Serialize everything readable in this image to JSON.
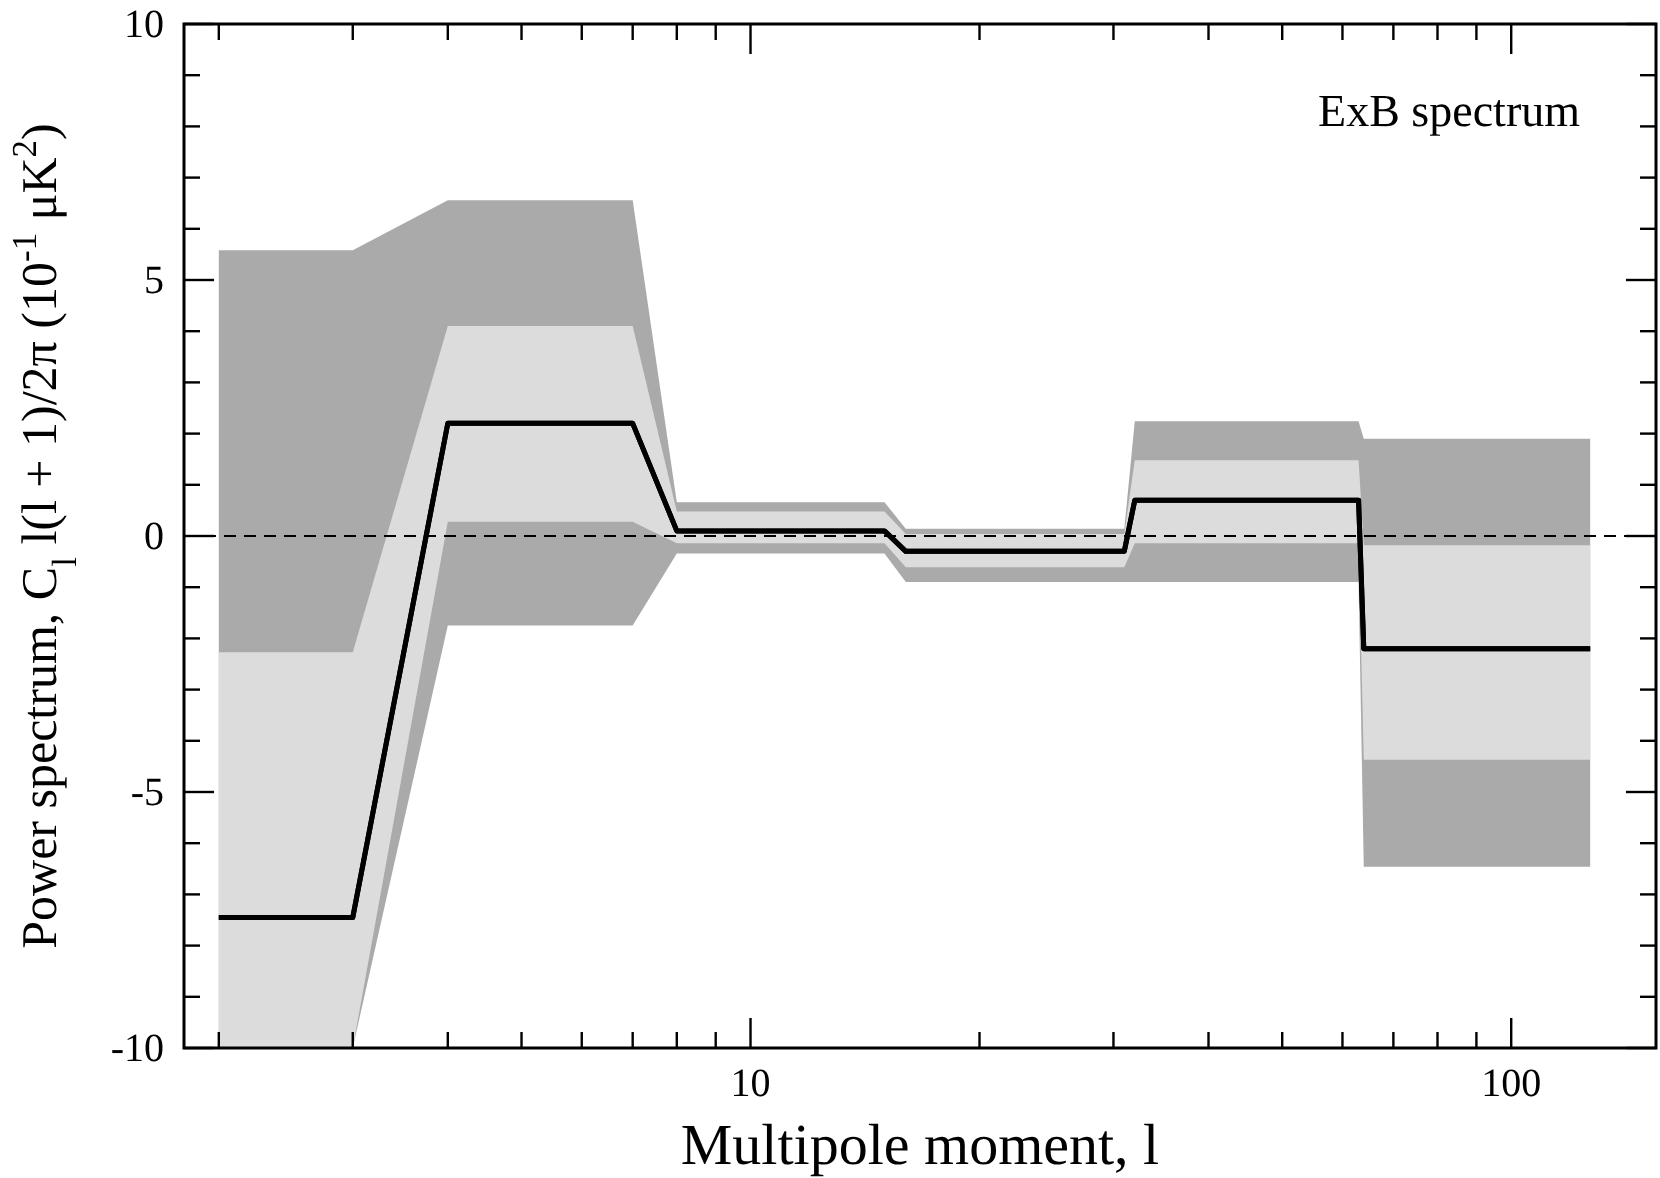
{
  "chart_data": {
    "type": "line",
    "xlabel": "Multipole moment, l",
    "ylabel": "Power spectrum, C$_{l}$ l(l + 1)/2π (10$^{-1}$ μK$^{2}$)",
    "annotations": [
      "ExB spectrum"
    ],
    "x": [
      2,
      3,
      4,
      7,
      8,
      15,
      16,
      31,
      32,
      63,
      64,
      127
    ],
    "log": "x",
    "xlim": [
      1.8,
      155
    ],
    "ylim": [
      -10,
      10
    ],
    "xticks": [
      {
        "value": 2,
        "label": null
      },
      {
        "value": 3,
        "label": null
      },
      {
        "value": 4,
        "label": null
      },
      {
        "value": 5,
        "label": null
      },
      {
        "value": 6,
        "label": null
      },
      {
        "value": 7,
        "label": null
      },
      {
        "value": 8,
        "label": null
      },
      {
        "value": 9,
        "label": null
      },
      10,
      {
        "value": 20,
        "label": null
      },
      {
        "value": 30,
        "label": null
      },
      {
        "value": 40,
        "label": null
      },
      {
        "value": 50,
        "label": null
      },
      {
        "value": 60,
        "label": null
      },
      {
        "value": 70,
        "label": null
      },
      {
        "value": 80,
        "label": null
      },
      {
        "value": 90,
        "label": null
      },
      100
    ],
    "yticks": [
      -10,
      {
        "value": -9,
        "label": null
      },
      {
        "value": -8,
        "label": null
      },
      {
        "value": -7,
        "label": null
      },
      {
        "value": -6,
        "label": null
      },
      -5,
      {
        "value": -4,
        "label": null
      },
      {
        "value": -3,
        "label": null
      },
      {
        "value": -2,
        "label": null
      },
      {
        "value": -1,
        "label": null
      },
      0,
      {
        "value": 1,
        "label": null
      },
      {
        "value": 2,
        "label": null
      },
      {
        "value": 3,
        "label": null
      },
      {
        "value": 4,
        "label": null
      },
      5,
      {
        "value": 6,
        "label": null
      },
      {
        "value": 7,
        "label": null
      },
      {
        "value": 8,
        "label": null
      },
      {
        "value": 9,
        "label": null
      },
      10
    ],
    "ref_lines": [
      {
        "axis": "y",
        "value": 0,
        "line_style": "dashed",
        "color": "#000000"
      }
    ],
    "series": [
      {
        "color": "#000000",
        "line_style": "solid",
        "values": [
          -7.45,
          -7.45,
          2.2,
          2.2,
          0.1,
          0.1,
          -0.3,
          -0.3,
          0.7,
          0.7,
          -2.2,
          -2.2
        ],
        "lower": [
          -10,
          -10,
          -1.75,
          -1.75,
          -0.34,
          -0.34,
          -0.9,
          -0.9,
          -0.9,
          -0.9,
          -6.46,
          -6.46
        ],
        "upper": [
          5.58,
          5.58,
          6.56,
          6.56,
          0.66,
          0.66,
          0.14,
          0.14,
          2.24,
          2.24,
          1.9,
          1.9
        ]
      },
      {
        "color": "#000000",
        "line_style": "solid",
        "values": [
          -7.45,
          -7.45,
          2.2,
          2.2,
          0.1,
          0.1,
          -0.3,
          -0.3,
          0.7,
          0.7,
          -2.2,
          -2.2
        ],
        "lower": [
          -10,
          -10,
          0.28,
          0.28,
          -0.14,
          -0.14,
          -0.61,
          -0.61,
          -0.14,
          -0.14,
          -4.37,
          -4.37
        ],
        "upper": [
          -2.27,
          -2.27,
          4.1,
          4.1,
          0.48,
          0.48,
          0.04,
          0.04,
          1.48,
          1.48,
          -0.18,
          -0.18
        ]
      }
    ]
  }
}
